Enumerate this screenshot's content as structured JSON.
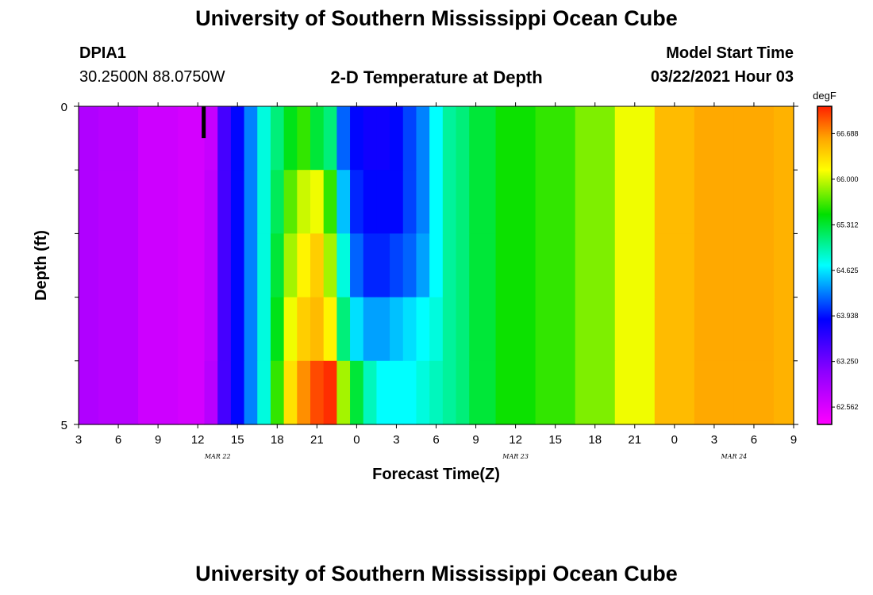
{
  "header": {
    "title": "University of Southern Mississippi Ocean Cube",
    "station_id": "DPIA1",
    "coordinates": "30.2500N 88.0750W",
    "model_start_label": "Model Start Time",
    "model_start_value": "03/22/2021 Hour 03",
    "plot_title": "2-D Temperature at Depth"
  },
  "footer": {
    "title": "University of Southern Mississippi Ocean Cube"
  },
  "chart_data": {
    "type": "heatmap",
    "title": "2-D Temperature at Depth",
    "xlabel": "Forecast Time(Z)",
    "ylabel": "Depth (ft)",
    "x_unit": "hours since 03/22 00Z",
    "xlim": [
      3,
      57
    ],
    "ylim": [
      0,
      5
    ],
    "x_ticks": [
      3,
      6,
      9,
      12,
      15,
      18,
      21,
      24,
      27,
      30,
      33,
      36,
      39,
      42,
      45,
      48,
      51,
      54,
      57
    ],
    "x_tick_labels": [
      "3",
      "6",
      "9",
      "12",
      "15",
      "18",
      "21",
      "0",
      "3",
      "6",
      "9",
      "12",
      "15",
      "18",
      "21",
      "0",
      "3",
      "6",
      "9"
    ],
    "y_tick_labels": [
      "0",
      "5"
    ],
    "y_minor_ticks": [
      1,
      2,
      3,
      4
    ],
    "date_labels": [
      {
        "text": "MAR 22",
        "x": 13.5
      },
      {
        "text": "MAR 23",
        "x": 36
      },
      {
        "text": "MAR 24",
        "x": 52.5
      }
    ],
    "colorbar": {
      "unit": "degF",
      "min": 62.3,
      "max": 67.1,
      "ticks": [
        "66.688",
        "66.000",
        "65.312",
        "64.625",
        "63.938",
        "63.250",
        "62.562"
      ],
      "tick_values": [
        66.688,
        66.0,
        65.312,
        64.625,
        63.938,
        63.25,
        62.562
      ]
    },
    "depth_layers": [
      0.5,
      1.5,
      2.5,
      3.5,
      4.5
    ],
    "time_hours": [
      3,
      6,
      9,
      12,
      13,
      14,
      15,
      16,
      17,
      18,
      19,
      20,
      21,
      22,
      23,
      24,
      25,
      26,
      27,
      28,
      29,
      30,
      31,
      32,
      33,
      36,
      39,
      42,
      45,
      48,
      51,
      54,
      57
    ],
    "temperatures_degF": [
      [
        62.85,
        62.8,
        62.65,
        62.6,
        62.7,
        63.5,
        63.9,
        64.3,
        64.8,
        65.1,
        65.4,
        65.6,
        65.3,
        65.1,
        64.2,
        63.9,
        63.8,
        63.8,
        63.9,
        64.1,
        64.3,
        64.7,
        65.0,
        65.1,
        65.3,
        65.5,
        65.6,
        65.8,
        66.1,
        66.5,
        66.6,
        66.6,
        66.55
      ],
      [
        62.85,
        62.8,
        62.65,
        62.6,
        62.75,
        63.5,
        63.9,
        64.3,
        64.8,
        65.2,
        65.7,
        66.0,
        66.1,
        65.6,
        64.5,
        64.0,
        63.9,
        63.9,
        63.9,
        64.1,
        64.3,
        64.7,
        65.0,
        65.1,
        65.3,
        65.5,
        65.6,
        65.8,
        66.1,
        66.5,
        66.6,
        66.6,
        66.55
      ],
      [
        62.85,
        62.8,
        62.65,
        62.6,
        62.75,
        63.5,
        63.9,
        64.3,
        64.8,
        65.3,
        65.9,
        66.2,
        66.4,
        65.9,
        64.8,
        64.2,
        64.0,
        64.0,
        64.1,
        64.2,
        64.4,
        64.7,
        65.0,
        65.1,
        65.3,
        65.5,
        65.6,
        65.8,
        66.1,
        66.5,
        66.6,
        66.6,
        66.55
      ],
      [
        62.85,
        62.8,
        62.65,
        62.6,
        62.75,
        63.5,
        63.9,
        64.3,
        64.8,
        65.4,
        66.1,
        66.4,
        66.5,
        66.2,
        65.1,
        64.6,
        64.4,
        64.4,
        64.5,
        64.6,
        64.7,
        64.8,
        65.0,
        65.1,
        65.3,
        65.5,
        65.6,
        65.8,
        66.1,
        66.5,
        66.6,
        66.6,
        66.55
      ],
      [
        62.85,
        62.8,
        62.65,
        62.6,
        62.8,
        63.5,
        63.9,
        64.3,
        64.8,
        65.6,
        66.3,
        66.7,
        66.95,
        67.05,
        65.9,
        65.3,
        64.9,
        64.7,
        64.7,
        64.7,
        64.8,
        64.9,
        65.0,
        65.1,
        65.3,
        65.5,
        65.6,
        65.8,
        66.1,
        66.5,
        66.6,
        66.6,
        66.55
      ]
    ],
    "data_gap": {
      "x_range": [
        12.3,
        12.6
      ],
      "depth_range": [
        0,
        0.5
      ]
    }
  }
}
